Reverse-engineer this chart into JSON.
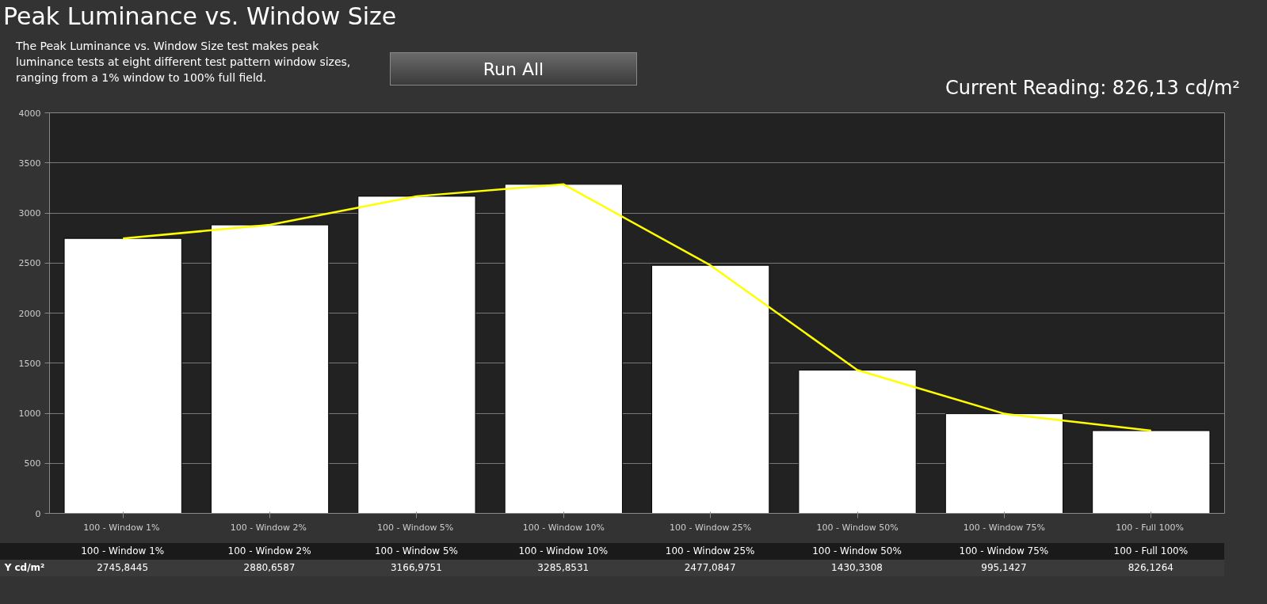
{
  "chart_data": {
    "type": "bar",
    "title": "Peak Luminance vs. Window Size",
    "subtitle": "The Peak Luminance vs. Window Size test makes peak luminance tests at eight different test pattern window sizes, ranging from a 1% window to 100% full field.",
    "annotations": [
      "Run All",
      "Current Reading: 826,13 cd/m²"
    ],
    "categories": [
      "100 - Window  1%",
      "100 - Window  2%",
      "100 - Window  5%",
      "100 - Window 10%",
      "100 - Window 25%",
      "100 - Window 50%",
      "100 - Window 75%",
      "100 - Full  100%"
    ],
    "series": [
      {
        "name": "Y cd/m²",
        "color": "#ffffff",
        "values": [
          2745.8445,
          2880.6587,
          3166.9751,
          3285.8531,
          2477.0847,
          1430.3308,
          995.1427,
          826.1264
        ],
        "value_labels": [
          "2745,8445",
          "2880,6587",
          "3166,9751",
          "3285,8531",
          "2477,0847",
          "1430,3308",
          "995,1427",
          "826,1264"
        ]
      },
      {
        "type": "line",
        "color": "#ffff00",
        "values": [
          2745.8445,
          2880.6587,
          3166.9751,
          3285.8531,
          2477.0847,
          1430.3308,
          995.1427,
          826.1264
        ]
      }
    ],
    "ylim": [
      0,
      4000
    ],
    "yticks": [
      0,
      500,
      1000,
      1500,
      2000,
      2500,
      3000,
      3500,
      4000
    ],
    "grid": "y",
    "legend": false,
    "marker": "none",
    "line_style": "solid"
  }
}
